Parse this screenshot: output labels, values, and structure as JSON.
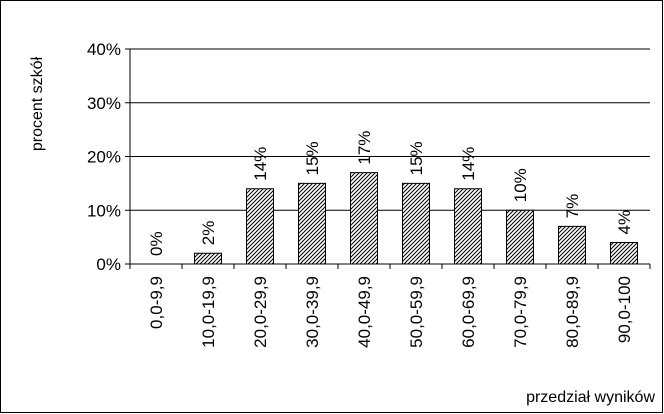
{
  "chart_data": {
    "type": "bar",
    "categories": [
      "0,0-9,9",
      "10,0-19,9",
      "20,0-29,9",
      "30,0-39,9",
      "40,0-49,9",
      "50,0-59,9",
      "60,0-69,9",
      "70,0-79,9",
      "80,0-89,9",
      "90,0-100"
    ],
    "values": [
      0,
      2,
      14,
      15,
      17,
      15,
      14,
      10,
      7,
      4
    ],
    "data_labels": [
      "0%",
      "2%",
      "14%",
      "15%",
      "17%",
      "15%",
      "14%",
      "10%",
      "7%",
      "4%"
    ],
    "ylim": [
      0,
      40
    ],
    "yticks": [
      0,
      10,
      20,
      30,
      40
    ],
    "ytick_labels": [
      "0%",
      "10%",
      "20%",
      "30%",
      "40%"
    ],
    "xlabel": "przedział wyników",
    "ylabel": "procent szkół",
    "grid": true,
    "legend": "none",
    "colors": {
      "bar_stroke": "#000000",
      "bar_hatch": "#000000",
      "grid": "#000000",
      "background": "#ffffff"
    }
  }
}
